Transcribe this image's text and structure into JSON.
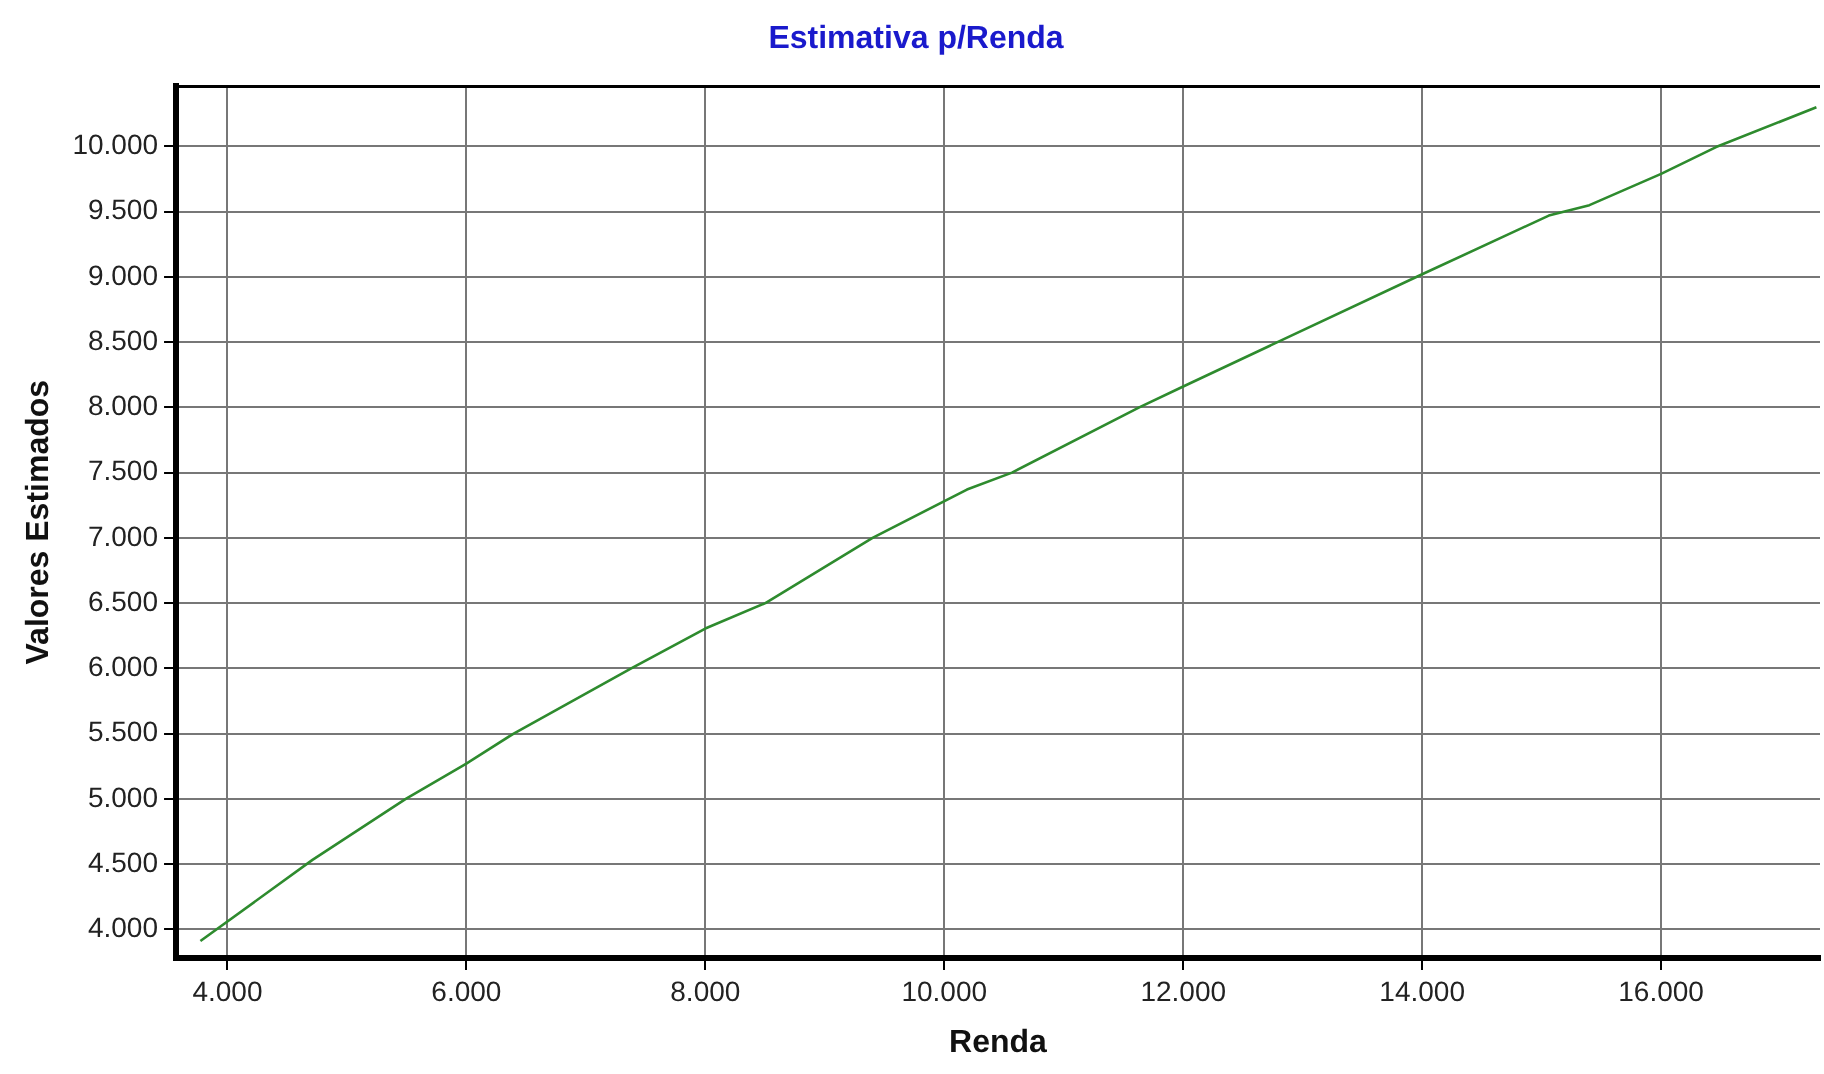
{
  "chart_data": {
    "type": "line",
    "title": "Estimativa p/Renda",
    "xlabel": "Renda",
    "ylabel": "Valores Estimados",
    "x": [
      3774,
      4712,
      5493,
      6000,
      6396,
      7380,
      8000,
      8503,
      9400,
      10190,
      10567,
      11632,
      12000,
      12789,
      14000,
      15060,
      15400,
      16000,
      16460,
      17300
    ],
    "series": [
      {
        "color": "#2e8b2e",
        "values": [
          3910,
          4532,
          5000,
          5270,
          5500,
          6000,
          6305,
          6500,
          7000,
          7370,
          7500,
          8000,
          8160,
          8500,
          9020,
          9470,
          9550,
          9790,
          9995,
          10300
        ]
      }
    ],
    "xlim": [
      3570,
      17330
    ],
    "ylim": [
      3780,
      10460
    ],
    "xticks": [
      {
        "value": 4000,
        "label": "4.000"
      },
      {
        "value": 6000,
        "label": "6.000"
      },
      {
        "value": 8000,
        "label": "8.000"
      },
      {
        "value": 10000,
        "label": "10.000"
      },
      {
        "value": 12000,
        "label": "12.000"
      },
      {
        "value": 14000,
        "label": "14.000"
      },
      {
        "value": 16000,
        "label": "16.000"
      }
    ],
    "yticks": [
      {
        "value": 4000,
        "label": "4.000"
      },
      {
        "value": 4500,
        "label": "4.500"
      },
      {
        "value": 5000,
        "label": "5.000"
      },
      {
        "value": 5500,
        "label": "5.500"
      },
      {
        "value": 6000,
        "label": "6.000"
      },
      {
        "value": 6500,
        "label": "6.500"
      },
      {
        "value": 7000,
        "label": "7.000"
      },
      {
        "value": 7500,
        "label": "7.500"
      },
      {
        "value": 8000,
        "label": "8.000"
      },
      {
        "value": 8500,
        "label": "8.500"
      },
      {
        "value": 9000,
        "label": "9.000"
      },
      {
        "value": 9500,
        "label": "9.500"
      },
      {
        "value": 10000,
        "label": "10.000"
      }
    ],
    "grid": true,
    "legend": false,
    "marker": "none",
    "line_style": "solid"
  }
}
